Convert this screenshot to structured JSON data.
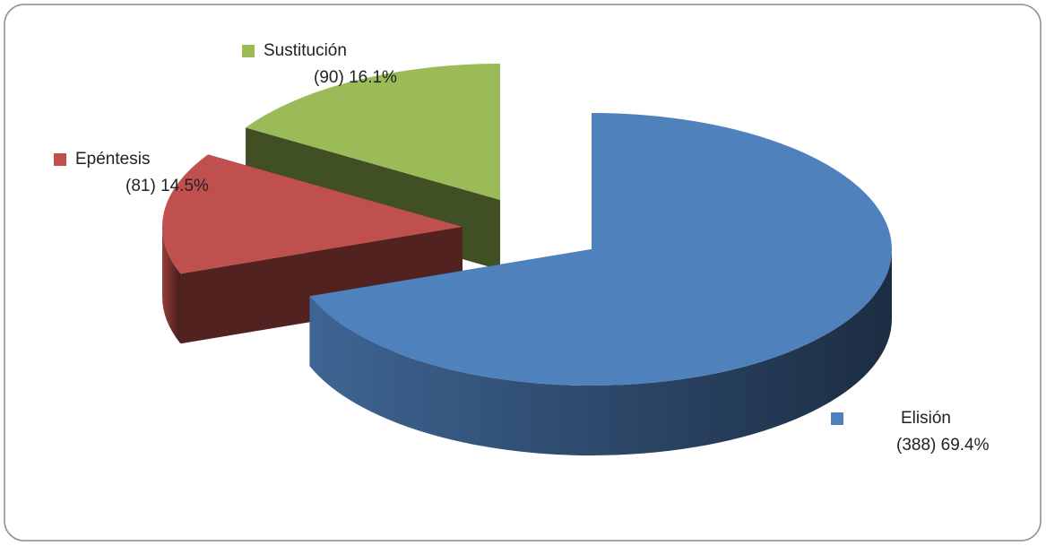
{
  "chart_data": {
    "type": "pie3d",
    "categories": [
      "Elisión",
      "Epéntesis",
      "Sustitución"
    ],
    "values": [
      388,
      81,
      90
    ],
    "value_labels": [
      "(388) 69.4%",
      "(81) 14.5%",
      "(90) 16.1%"
    ],
    "colors": [
      "#4f81bd",
      "#c0504d",
      "#9bbb59"
    ]
  }
}
